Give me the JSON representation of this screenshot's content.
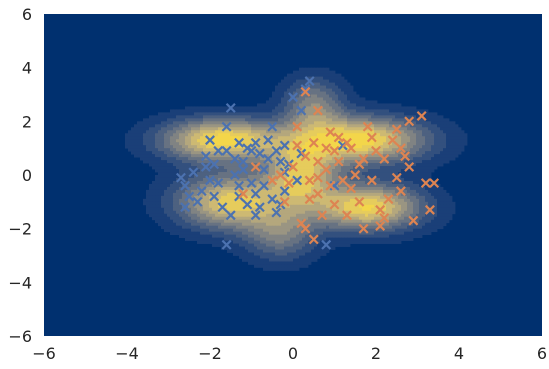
{
  "chart_data": {
    "type": "scatter",
    "subtype": "density-contour",
    "title": "",
    "xlabel": "",
    "ylabel": "",
    "xlim": [
      -6,
      6
    ],
    "ylim": [
      -6,
      6
    ],
    "xticks": [
      -6,
      -4,
      -2,
      0,
      2,
      4,
      6
    ],
    "yticks": [
      -6,
      -4,
      -2,
      0,
      2,
      4,
      6
    ],
    "grid": false,
    "legend": "none",
    "colors": {
      "background": "#00306f",
      "contour_levels": [
        "#1a3f78",
        "#33507e",
        "#4d6180",
        "#677282",
        "#808383",
        "#9a9582",
        "#b4a77d",
        "#cdb973",
        "#e6cc5c",
        "#f3d64a"
      ],
      "series_1": "#4c72b0",
      "series_2": "#dd8452"
    },
    "marker": "x",
    "density_centers": [
      {
        "x": -1.7,
        "y": 1.3,
        "sx": 1.0,
        "sy": 0.55,
        "w": 1.0
      },
      {
        "x": -1.5,
        "y": -1.0,
        "sx": 0.9,
        "sy": 0.7,
        "w": 0.9
      },
      {
        "x": 1.6,
        "y": 1.3,
        "sx": 1.1,
        "sy": 0.6,
        "w": 1.0
      },
      {
        "x": 1.8,
        "y": -1.2,
        "sx": 0.9,
        "sy": 0.6,
        "w": 0.95
      },
      {
        "x": 0.2,
        "y": 0.0,
        "sx": 0.6,
        "sy": 0.8,
        "w": 0.8
      },
      {
        "x": 0.5,
        "y": 2.6,
        "sx": 0.5,
        "sy": 0.7,
        "w": 0.5
      },
      {
        "x": -0.3,
        "y": -2.2,
        "sx": 0.6,
        "sy": 0.7,
        "w": 0.45
      }
    ],
    "series": [
      {
        "points": [
          [
            -1.5,
            2.5
          ],
          [
            -1.3,
            1.2
          ],
          [
            -1.6,
            0.9
          ],
          [
            -2.0,
            1.3
          ],
          [
            -2.1,
            0.7
          ],
          [
            -1.9,
            0.4
          ],
          [
            -1.2,
            0.5
          ],
          [
            -1.4,
            0.0
          ],
          [
            -0.8,
            0.8
          ],
          [
            -0.9,
            1.2
          ],
          [
            -0.6,
            1.3
          ],
          [
            -0.5,
            1.8
          ],
          [
            -0.2,
            1.1
          ],
          [
            -0.3,
            0.5
          ],
          [
            -1.0,
            -0.3
          ],
          [
            -1.8,
            -0.3
          ],
          [
            -2.2,
            -0.6
          ],
          [
            -2.6,
            -0.4
          ],
          [
            -2.5,
            -0.8
          ],
          [
            -2.7,
            -0.1
          ],
          [
            -2.4,
            0.1
          ],
          [
            -1.1,
            -1.1
          ],
          [
            -1.3,
            -0.8
          ],
          [
            -0.8,
            -1.2
          ],
          [
            -0.5,
            -0.9
          ],
          [
            -1.7,
            -1.2
          ],
          [
            -1.5,
            -1.5
          ],
          [
            -0.9,
            -1.5
          ],
          [
            -1.6,
            -2.6
          ],
          [
            -0.4,
            -1.4
          ],
          [
            -2.0,
            -0.2
          ],
          [
            -1.2,
            0.2
          ],
          [
            -0.7,
            0.2
          ],
          [
            -1.0,
            0.9
          ],
          [
            -0.4,
            0.9
          ],
          [
            -1.6,
            1.8
          ],
          [
            -0.7,
            -0.4
          ],
          [
            0.0,
            2.9
          ],
          [
            0.3,
            3.2
          ],
          [
            0.4,
            3.5
          ],
          [
            0.2,
            2.4
          ],
          [
            1.2,
            1.1
          ],
          [
            1.0,
            -0.4
          ],
          [
            0.8,
            -2.6
          ],
          [
            0.2,
            0.8
          ],
          [
            -0.1,
            0.4
          ],
          [
            -1.9,
            -0.8
          ],
          [
            -2.3,
            -1.0
          ],
          [
            -1.4,
            0.6
          ],
          [
            -0.2,
            -0.6
          ],
          [
            -2.6,
            -1.2
          ],
          [
            -1.3,
            -0.4
          ],
          [
            -0.9,
            -0.7
          ],
          [
            -2.1,
            0.3
          ],
          [
            -0.6,
            0.6
          ],
          [
            -1.1,
            1.0
          ],
          [
            -0.3,
            -1.1
          ],
          [
            -1.8,
            0.9
          ],
          [
            -0.2,
            0.1
          ],
          [
            0.1,
            -0.2
          ]
        ]
      },
      {
        "points": [
          [
            0.3,
            3.1
          ],
          [
            0.6,
            2.4
          ],
          [
            0.1,
            1.8
          ],
          [
            0.5,
            1.2
          ],
          [
            0.9,
            1.6
          ],
          [
            1.3,
            1.2
          ],
          [
            1.7,
            0.6
          ],
          [
            2.0,
            0.9
          ],
          [
            2.4,
            1.3
          ],
          [
            2.6,
            1.0
          ],
          [
            2.5,
            1.7
          ],
          [
            3.1,
            2.2
          ],
          [
            2.8,
            0.3
          ],
          [
            3.2,
            -0.3
          ],
          [
            3.4,
            -0.3
          ],
          [
            2.6,
            -0.6
          ],
          [
            2.9,
            -1.7
          ],
          [
            3.3,
            -1.3
          ],
          [
            2.2,
            -1.6
          ],
          [
            2.1,
            -1.3
          ],
          [
            1.6,
            -1.0
          ],
          [
            1.3,
            -1.5
          ],
          [
            1.0,
            -1.1
          ],
          [
            0.6,
            -0.7
          ],
          [
            0.4,
            -0.2
          ],
          [
            0.8,
            0.2
          ],
          [
            1.1,
            0.5
          ],
          [
            1.5,
            0.0
          ],
          [
            1.9,
            -0.2
          ],
          [
            0.2,
            -1.8
          ],
          [
            0.5,
            -2.4
          ],
          [
            0.3,
            -2.0
          ],
          [
            -0.1,
            -0.3
          ],
          [
            0.0,
            0.3
          ],
          [
            -0.3,
            0.0
          ],
          [
            0.6,
            0.5
          ],
          [
            1.4,
            -0.5
          ],
          [
            1.8,
            1.8
          ],
          [
            2.2,
            0.6
          ],
          [
            2.5,
            -0.1
          ],
          [
            0.8,
            1.0
          ],
          [
            1.2,
            -0.2
          ],
          [
            0.3,
            0.7
          ],
          [
            -0.5,
            -0.2
          ],
          [
            -0.9,
            0.3
          ],
          [
            -1.2,
            -0.7
          ],
          [
            1.7,
            -2.0
          ],
          [
            2.1,
            -1.9
          ],
          [
            0.7,
            -1.5
          ],
          [
            1.0,
            0.9
          ],
          [
            0.4,
            -0.9
          ],
          [
            1.6,
            0.4
          ],
          [
            2.3,
            -0.9
          ],
          [
            0.9,
            -0.4
          ],
          [
            -0.2,
            -1.0
          ],
          [
            1.1,
            1.4
          ],
          [
            2.7,
            0.7
          ],
          [
            0.1,
            1.1
          ],
          [
            1.4,
            1.0
          ],
          [
            0.6,
            -0.1
          ],
          [
            1.9,
            1.4
          ],
          [
            2.8,
            2.0
          ]
        ]
      }
    ]
  }
}
